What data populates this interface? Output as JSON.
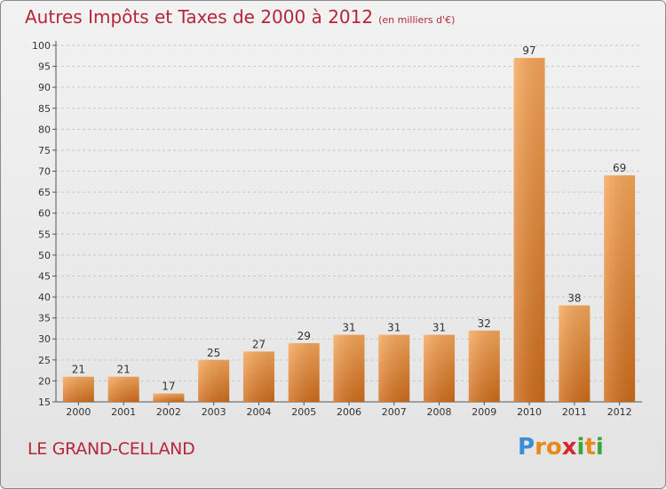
{
  "header": {
    "title": "Autres Impôts et Taxes de 2000 à 2012",
    "subtitle": "(en milliers d'€)"
  },
  "footer": {
    "place": "LE GRAND-CELLAND",
    "logo": {
      "letters": [
        "P",
        "r",
        "o",
        "x",
        "i",
        "t",
        "i"
      ],
      "colors": [
        "#3a8ed6",
        "#e88a1a",
        "#e88a1a",
        "#d8262e",
        "#3aa63c",
        "#e88a1a",
        "#3aa63c"
      ]
    }
  },
  "colors": {
    "bar_light": "#f7a75a",
    "bar_dark": "#cf6c1a",
    "grid": "#c8c8c8",
    "axis": "#555555",
    "tick_text": "#333333"
  },
  "chart_data": {
    "type": "bar",
    "categories": [
      "2000",
      "2001",
      "2002",
      "2003",
      "2004",
      "2005",
      "2006",
      "2007",
      "2008",
      "2009",
      "2010",
      "2011",
      "2012"
    ],
    "values": [
      21,
      21,
      17,
      25,
      27,
      29,
      31,
      31,
      31,
      32,
      97,
      38,
      69
    ],
    "data_labels": [
      "21",
      "21",
      "17",
      "25",
      "27",
      "29",
      "31",
      "31",
      "31",
      "32",
      "97",
      "38",
      "69"
    ],
    "title": "Autres Impôts et Taxes de 2000 à 2012",
    "ylim": [
      15,
      100
    ],
    "yticks": [
      "15",
      "20",
      "25",
      "30",
      "35",
      "40",
      "45",
      "50",
      "55",
      "60",
      "65",
      "70",
      "75",
      "80",
      "85",
      "90",
      "95",
      "100"
    ],
    "grid": true,
    "legend": "none"
  }
}
